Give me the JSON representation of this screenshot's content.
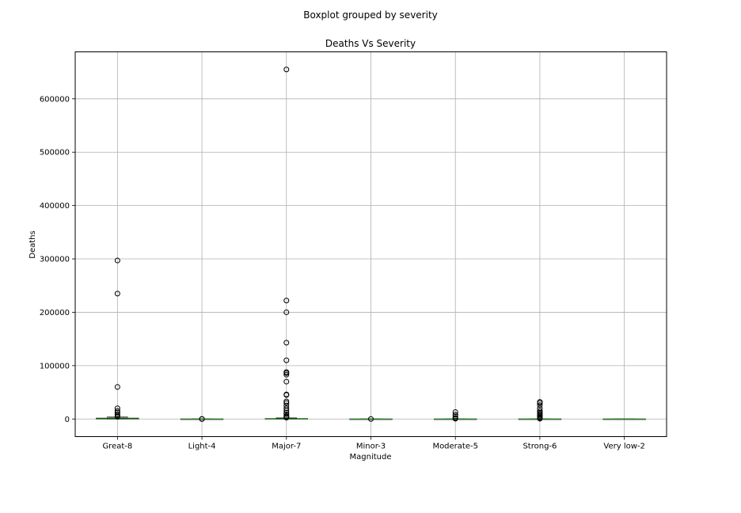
{
  "chart_data": {
    "type": "boxplot",
    "suptitle": "Boxplot grouped by severity",
    "title": "Deaths Vs Severity",
    "xlabel": "Magnitude",
    "ylabel": "Deaths",
    "ylim": [
      -33000,
      688000
    ],
    "yticks": [
      0,
      100000,
      200000,
      300000,
      400000,
      500000,
      600000
    ],
    "ytick_labels": [
      "0",
      "100000",
      "200000",
      "300000",
      "400000",
      "500000",
      "600000"
    ],
    "grid": true,
    "categories": [
      "Great-8",
      "Light-4",
      "Major-7",
      "Minor-3",
      "Moderate-5",
      "Strong-6",
      "Very low-2"
    ],
    "boxes": [
      {
        "category": "Great-8",
        "whisker_low": 0,
        "q1": 0,
        "median": 200,
        "q3": 1500,
        "whisker_high": 3500,
        "outliers": [
          297000,
          235000,
          60000,
          20000,
          15000,
          12000,
          9000,
          6000,
          4500
        ]
      },
      {
        "category": "Light-4",
        "whisker_low": 0,
        "q1": 0,
        "median": 0,
        "q3": 0,
        "whisker_high": 0,
        "outliers": [
          2,
          1
        ]
      },
      {
        "category": "Major-7",
        "whisker_low": 0,
        "q1": 0,
        "median": 100,
        "q3": 700,
        "whisker_high": 1800,
        "outliers": [
          655000,
          222000,
          200000,
          143000,
          110000,
          88000,
          86000,
          83000,
          70000,
          46000,
          45000,
          33000,
          30000,
          25000,
          20000,
          16000,
          12000,
          9000,
          6000,
          4000,
          2500
        ]
      },
      {
        "category": "Minor-3",
        "whisker_low": 0,
        "q1": 0,
        "median": 0,
        "q3": 0,
        "whisker_high": 0,
        "outliers": [
          1
        ]
      },
      {
        "category": "Moderate-5",
        "whisker_low": 0,
        "q1": 0,
        "median": 0,
        "q3": 3,
        "whisker_high": 7,
        "outliers": [
          13000,
          8000,
          5000,
          2000,
          500
        ]
      },
      {
        "category": "Strong-6",
        "whisker_low": 0,
        "q1": 0,
        "median": 2,
        "q3": 30,
        "whisker_high": 70,
        "outliers": [
          32000,
          30000,
          26000,
          20000,
          15000,
          12000,
          10000,
          8000,
          6000,
          4000,
          2000,
          500
        ]
      },
      {
        "category": "Very low-2",
        "whisker_low": 0,
        "q1": 0,
        "median": 0,
        "q3": 0,
        "whisker_high": 0,
        "outliers": []
      }
    ],
    "colors": {
      "box": "#1f1f1f",
      "median": "#2ca02c",
      "grid": "#b0b0b0",
      "flier": "#000000"
    }
  }
}
